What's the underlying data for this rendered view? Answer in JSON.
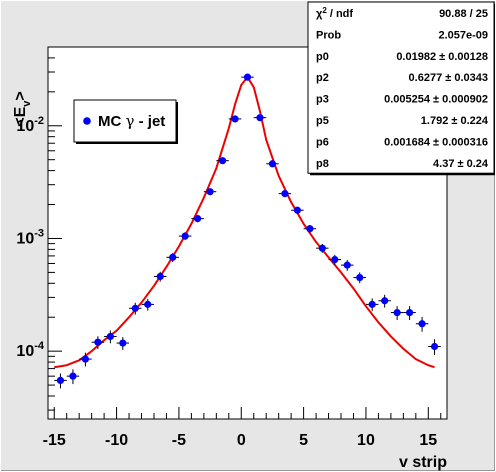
{
  "chart_data": {
    "type": "scatter",
    "title": "",
    "xlabel": "v strip",
    "ylabel_main": "<E",
    "ylabel_sub": "v",
    "ylabel_close": ">",
    "xlim": [
      -15.5,
      16.5
    ],
    "ylim": [
      2.5e-05,
      0.05
    ],
    "yscale": "log",
    "x_ticks": [
      -15,
      -10,
      -5,
      0,
      5,
      10,
      15
    ],
    "x_tick_labels": [
      "-15",
      "-10",
      "-5",
      "0",
      "5",
      "10",
      "15"
    ],
    "y_ticks": [
      0.0001,
      0.001,
      0.01
    ],
    "y_tick_base": "10",
    "y_tick_exponents": [
      "-4",
      "-3",
      "-2"
    ],
    "legend": {
      "label_prefix": "MC ",
      "label_greek": "γ",
      "label_suffix": " - jet",
      "marker_color": "#0000ff",
      "placement": "upper-left"
    },
    "series": [
      {
        "name": "MC γ - jet",
        "marker_color": "#0000ff",
        "x": [
          -14.5,
          -13.5,
          -12.5,
          -11.5,
          -10.5,
          -9.5,
          -8.5,
          -7.5,
          -6.5,
          -5.5,
          -4.5,
          -3.5,
          -2.5,
          -1.5,
          -0.5,
          0.5,
          1.5,
          2.5,
          3.5,
          4.5,
          5.5,
          6.5,
          7.5,
          8.5,
          9.5,
          10.5,
          11.5,
          12.5,
          13.5,
          14.5,
          15.5
        ],
        "y": [
          5.5e-05,
          6e-05,
          8.5e-05,
          0.00012,
          0.000135,
          0.000118,
          0.00024,
          0.00026,
          0.00046,
          0.00068,
          0.00105,
          0.0015,
          0.0026,
          0.0049,
          0.0115,
          0.027,
          0.0118,
          0.0046,
          0.0025,
          0.00178,
          0.00122,
          0.00082,
          0.00065,
          0.00058,
          0.00045,
          0.00026,
          0.00028,
          0.00022,
          0.00022,
          0.000175,
          0.00011
        ],
        "yerr_rel": [
          0.15,
          0.15,
          0.14,
          0.13,
          0.13,
          0.13,
          0.12,
          0.12,
          0.1,
          0.09,
          0.08,
          0.07,
          0.06,
          0.05,
          0.04,
          0.03,
          0.04,
          0.05,
          0.06,
          0.07,
          0.08,
          0.09,
          0.1,
          0.11,
          0.11,
          0.13,
          0.13,
          0.14,
          0.14,
          0.15,
          0.16
        ]
      },
      {
        "name": "",
        "type": "line",
        "line_color": "#ee0000",
        "x": [
          -15,
          -14,
          -13,
          -12,
          -11,
          -10,
          -9,
          -8,
          -7,
          -6,
          -5,
          -4,
          -3,
          -2,
          -1,
          -0.5,
          0,
          0.5,
          1,
          1.5,
          2,
          3,
          4,
          5,
          6,
          7,
          8,
          9,
          10,
          11,
          12,
          13,
          14,
          15,
          15.5
        ],
        "y": [
          7.2e-05,
          7.5e-05,
          8.3e-05,
          0.0001,
          0.000125,
          0.000152,
          0.0002,
          0.00027,
          0.00038,
          0.00056,
          0.00085,
          0.00135,
          0.0023,
          0.0042,
          0.0095,
          0.0155,
          0.023,
          0.027,
          0.022,
          0.0135,
          0.0075,
          0.0036,
          0.0021,
          0.00135,
          0.00093,
          0.00068,
          0.0005,
          0.00036,
          0.00025,
          0.00018,
          0.000135,
          0.000105,
          8.5e-05,
          7.5e-05,
          7.2e-05
        ]
      }
    ],
    "stats_box": {
      "rows": [
        {
          "label_prefix": "χ",
          "label_sup": "2",
          "label_suffix": " / ndf",
          "value": "90.88 / 25"
        },
        {
          "label_prefix": "Prob",
          "label_sup": "",
          "label_suffix": "",
          "value": "2.057e-09"
        },
        {
          "label_prefix": "p0",
          "label_sup": "",
          "label_suffix": "",
          "value": "0.01982 ± 0.00128"
        },
        {
          "label_prefix": "p2",
          "label_sup": "",
          "label_suffix": "",
          "value": "0.6277 ± 0.0343"
        },
        {
          "label_prefix": "p3",
          "label_sup": "",
          "label_suffix": "",
          "value": "0.005254 ± 0.000902"
        },
        {
          "label_prefix": "p5",
          "label_sup": "",
          "label_suffix": "",
          "value": "1.792 ± 0.224"
        },
        {
          "label_prefix": "p6",
          "label_sup": "",
          "label_suffix": "",
          "value": "0.001684 ± 0.000316"
        },
        {
          "label_prefix": "p8",
          "label_sup": "",
          "label_suffix": "",
          "value": "4.37 ± 0.24"
        }
      ]
    },
    "colors": {
      "canvas_bg": "#e6e6e6",
      "frame_bg": "#ffffff",
      "axis": "#000000"
    }
  }
}
